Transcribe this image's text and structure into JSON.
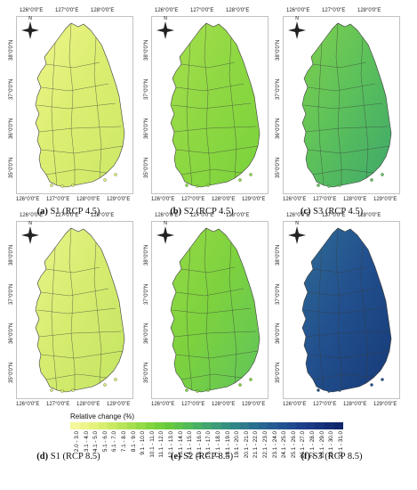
{
  "panels": [
    {
      "id": "a",
      "caption_letter": "(a)",
      "caption_text": "S1 (RCP 4.5)",
      "fill": "#dcee72",
      "fill2": "#cce866",
      "fill3": "#eef58a"
    },
    {
      "id": "b",
      "caption_letter": "(b)",
      "caption_text": "S2 (RCP 4.5)",
      "fill": "#8fd843",
      "fill2": "#79d23b",
      "fill3": "#a6df4e"
    },
    {
      "id": "c",
      "caption_letter": "(c)",
      "caption_text": "S3 (RCP 4.5)",
      "fill": "#5ec25a",
      "fill2": "#3ea86a",
      "fill3": "#7fcf4d"
    },
    {
      "id": "d",
      "caption_letter": "(d)",
      "caption_text": "S1 (RCP 8.5)",
      "fill": "#d6ec70",
      "fill2": "#c4e562",
      "fill3": "#eaf488"
    },
    {
      "id": "e",
      "caption_letter": "(e)",
      "caption_text": "S2 (RCP 8.5)",
      "fill": "#7dd23e",
      "fill2": "#5fc45a",
      "fill3": "#96da46"
    },
    {
      "id": "f",
      "caption_letter": "(f)",
      "caption_text": "S3 (RCP 8.5)",
      "fill": "#22508e",
      "fill2": "#173b78",
      "fill3": "#2f6c95"
    }
  ],
  "axis_ticks": {
    "x": [
      "126°0'0\"E",
      "127°0'0\"E",
      "128°0'0\"E",
      "129°0'0\"E"
    ],
    "x_top": [
      "126°0'0\"E",
      "127°0'0\"E",
      "128°0'0\"E"
    ],
    "y": [
      "38°0'0\"N",
      "37°0'0\"N",
      "36°0'0\"N",
      "35°0'0\"N"
    ]
  },
  "compass_label": "N",
  "legend": {
    "title": "Relative change (%)",
    "classes": [
      {
        "label": "2.0 - 3.0",
        "color": "#f4f79a"
      },
      {
        "label": "3.1 - 4.0",
        "color": "#eef58a"
      },
      {
        "label": "4.1 - 5.0",
        "color": "#e4f27c"
      },
      {
        "label": "5.1 - 6.0",
        "color": "#d8ee6e"
      },
      {
        "label": "6.1 - 7.0",
        "color": "#c9e962"
      },
      {
        "label": "7.1 - 8.0",
        "color": "#b8e458"
      },
      {
        "label": "8.1 - 9.0",
        "color": "#a6df4e"
      },
      {
        "label": "9.1 - 10.0",
        "color": "#94da45"
      },
      {
        "label": "10.1 - 11.0",
        "color": "#82d53e"
      },
      {
        "label": "11.1 - 12.0",
        "color": "#73cf3b"
      },
      {
        "label": "12.1 - 13.0",
        "color": "#66c93d"
      },
      {
        "label": "13.1 - 14.0",
        "color": "#5cc24a"
      },
      {
        "label": "14.1 - 15.0",
        "color": "#52ba57"
      },
      {
        "label": "15.1 - 16.0",
        "color": "#48b063"
      },
      {
        "label": "16.1 - 17.0",
        "color": "#42a66e"
      },
      {
        "label": "17.1 - 18.0",
        "color": "#3c9b78"
      },
      {
        "label": "18.1 - 19.0",
        "color": "#369080"
      },
      {
        "label": "19.1 - 20.0",
        "color": "#318587"
      },
      {
        "label": "20.1 - 21.0",
        "color": "#2d7a8c"
      },
      {
        "label": "21.1 - 22.0",
        "color": "#296f90"
      },
      {
        "label": "22.1 - 23.0",
        "color": "#276592"
      },
      {
        "label": "23.1 - 24.0",
        "color": "#255b93"
      },
      {
        "label": "24.1 - 25.0",
        "color": "#235292"
      },
      {
        "label": "25.1 - 26.0",
        "color": "#20498e"
      },
      {
        "label": "26.1 - 27.0",
        "color": "#1d4189"
      },
      {
        "label": "27.1 - 28.0",
        "color": "#1a3a83"
      },
      {
        "label": "28.1 - 29.0",
        "color": "#17337c"
      },
      {
        "label": "29.1 - 30.0",
        "color": "#142c74"
      },
      {
        "label": "30.1 - 31.0",
        "color": "#11266b"
      }
    ]
  }
}
